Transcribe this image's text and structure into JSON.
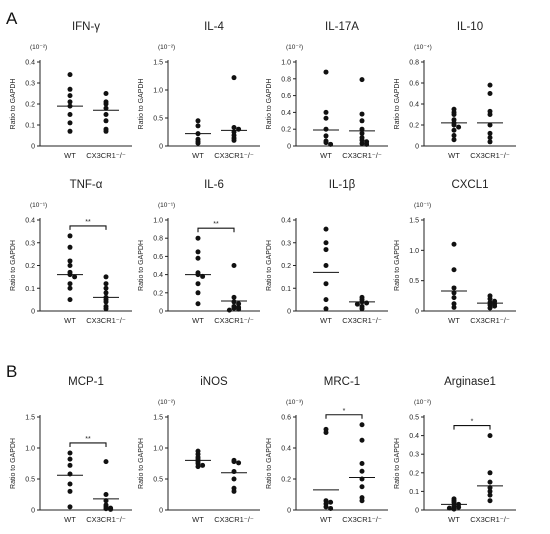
{
  "panels": [
    {
      "letter": "A"
    },
    {
      "letter": "B"
    }
  ],
  "chart_data": [
    {
      "panel": "A",
      "type": "scatter",
      "title": "IFN-γ",
      "unit": "(10⁻²)",
      "ylabel": "Ratio to GAPDH",
      "categories": [
        "WT",
        "CX3CR1⁻/⁻"
      ],
      "ylim": [
        0,
        0.4
      ],
      "yticks": [
        "0",
        "0.1",
        "0.2",
        "0.3",
        "0.4"
      ],
      "series": [
        {
          "values": [
            0.34,
            0.27,
            0.24,
            0.21,
            0.19,
            0.15,
            0.11,
            0.07
          ]
        },
        {
          "values": [
            0.25,
            0.21,
            0.2,
            0.18,
            0.15,
            0.12,
            0.08,
            0.07
          ]
        }
      ],
      "medians": [
        0.19,
        0.17
      ],
      "significance": ""
    },
    {
      "panel": "A",
      "type": "scatter",
      "title": "IL-4",
      "unit": "(10⁻²)",
      "ylabel": "Ratio to GAPDH",
      "categories": [
        "WT",
        "CX3CR1⁻/⁻"
      ],
      "ylim": [
        0,
        1.5
      ],
      "yticks": [
        "0",
        "0.5",
        "1.0",
        "1.5"
      ],
      "series": [
        {
          "values": [
            0.45,
            0.36,
            0.22,
            0.12,
            0.08,
            0.05
          ]
        },
        {
          "values": [
            1.22,
            0.33,
            0.3,
            0.25,
            0.19,
            0.14,
            0.1
          ]
        }
      ],
      "medians": [
        0.22,
        0.28
      ],
      "significance": ""
    },
    {
      "panel": "A",
      "type": "scatter",
      "title": "IL-17A",
      "unit": "(10⁻²)",
      "ylabel": "Ratio to GAPDH",
      "categories": [
        "WT",
        "CX3CR1⁻/⁻"
      ],
      "ylim": [
        0,
        1.0
      ],
      "yticks": [
        "0",
        "0.2",
        "0.4",
        "0.6",
        "0.8",
        "1.0"
      ],
      "series": [
        {
          "values": [
            0.88,
            0.4,
            0.33,
            0.2,
            0.12,
            0.06,
            0.04,
            0.02
          ]
        },
        {
          "values": [
            0.79,
            0.38,
            0.3,
            0.2,
            0.15,
            0.1,
            0.07,
            0.05,
            0.03,
            0.02
          ]
        }
      ],
      "medians": [
        0.19,
        0.18
      ],
      "significance": ""
    },
    {
      "panel": "A",
      "type": "scatter",
      "title": "IL-10",
      "unit": "(10⁻⁴)",
      "ylabel": "Ratio to GAPDH",
      "categories": [
        "WT",
        "CX3CR1⁻/⁻"
      ],
      "ylim": [
        0,
        0.8
      ],
      "yticks": [
        "0",
        "0.2",
        "0.4",
        "0.6",
        "0.8"
      ],
      "series": [
        {
          "values": [
            0.35,
            0.32,
            0.3,
            0.25,
            0.22,
            0.2,
            0.18,
            0.15,
            0.1,
            0.06
          ]
        },
        {
          "values": [
            0.58,
            0.5,
            0.33,
            0.3,
            0.2,
            0.12,
            0.08,
            0.04
          ]
        }
      ],
      "medians": [
        0.22,
        0.22
      ],
      "significance": ""
    },
    {
      "panel": "A",
      "type": "scatter",
      "title": "TNF-α",
      "unit": "(10⁻¹)",
      "ylabel": "Ratio to GAPDH",
      "categories": [
        "WT",
        "CX3CR1⁻/⁻"
      ],
      "ylim": [
        0,
        0.4
      ],
      "yticks": [
        "0",
        "0.1",
        "0.2",
        "0.3",
        "0.4"
      ],
      "series": [
        {
          "values": [
            0.33,
            0.28,
            0.22,
            0.2,
            0.17,
            0.16,
            0.15,
            0.12,
            0.1,
            0.05
          ]
        },
        {
          "values": [
            0.15,
            0.12,
            0.1,
            0.08,
            0.06,
            0.05,
            0.04,
            0.02,
            0.01
          ]
        }
      ],
      "medians": [
        0.16,
        0.06
      ],
      "significance": "**"
    },
    {
      "panel": "A",
      "type": "scatter",
      "title": "IL-6",
      "unit": "(10⁻¹)",
      "ylabel": "Ratio to GAPDH",
      "categories": [
        "WT",
        "CX3CR1⁻/⁻"
      ],
      "ylim": [
        0,
        1.0
      ],
      "yticks": [
        "0",
        "0.2",
        "0.4",
        "0.6",
        "0.8",
        "1.0"
      ],
      "series": [
        {
          "values": [
            0.8,
            0.65,
            0.58,
            0.42,
            0.4,
            0.38,
            0.3,
            0.2,
            0.08
          ]
        },
        {
          "values": [
            0.5,
            0.15,
            0.1,
            0.08,
            0.05,
            0.04,
            0.03,
            0.02,
            0.01
          ]
        }
      ],
      "medians": [
        0.4,
        0.11
      ],
      "significance": "**"
    },
    {
      "panel": "A",
      "type": "scatter",
      "title": "IL-1β",
      "unit": "",
      "ylabel": "Ratio to GAPDH",
      "categories": [
        "WT",
        "CX3CR1⁻/⁻"
      ],
      "ylim": [
        0,
        0.4
      ],
      "yticks": [
        "0",
        "0.1",
        "0.2",
        "0.3",
        "0.4"
      ],
      "series": [
        {
          "values": [
            0.36,
            0.3,
            0.27,
            0.2,
            0.12,
            0.05,
            0.01
          ]
        },
        {
          "values": [
            0.06,
            0.05,
            0.04,
            0.035,
            0.03,
            0.02,
            0.01
          ]
        }
      ],
      "medians": [
        0.17,
        0.04
      ],
      "significance": ""
    },
    {
      "panel": "A",
      "type": "scatter",
      "title": "CXCL1",
      "unit": "(10⁻¹)",
      "ylabel": "Ratio to GAPDH",
      "categories": [
        "WT",
        "CX3CR1⁻/⁻"
      ],
      "ylim": [
        0,
        1.5
      ],
      "yticks": [
        "0",
        "0.5",
        "1.0",
        "1.5"
      ],
      "series": [
        {
          "values": [
            1.1,
            0.68,
            0.38,
            0.3,
            0.22,
            0.12,
            0.06
          ]
        },
        {
          "values": [
            0.25,
            0.2,
            0.16,
            0.14,
            0.12,
            0.1,
            0.08,
            0.05
          ]
        }
      ],
      "medians": [
        0.33,
        0.13
      ],
      "significance": ""
    },
    {
      "panel": "B",
      "type": "scatter",
      "title": "MCP-1",
      "unit": "",
      "ylabel": "Ratio to GAPDH",
      "categories": [
        "WT",
        "CX3CR1⁻/⁻"
      ],
      "ylim": [
        0,
        1.5
      ],
      "yticks": [
        "0",
        "0.5",
        "1.0",
        "1.5"
      ],
      "series": [
        {
          "values": [
            0.92,
            0.82,
            0.72,
            0.58,
            0.42,
            0.3,
            0.05
          ]
        },
        {
          "values": [
            0.78,
            0.25,
            0.15,
            0.08,
            0.05,
            0.03,
            0.02,
            0.01
          ]
        }
      ],
      "medians": [
        0.56,
        0.18
      ],
      "significance": "**"
    },
    {
      "panel": "B",
      "type": "scatter",
      "title": "iNOS",
      "unit": "(10⁻²)",
      "ylabel": "Ratio to GAPDH",
      "categories": [
        "WT",
        "CX3CR1⁻/⁻"
      ],
      "ylim": [
        0,
        1.5
      ],
      "yticks": [
        "0",
        "0.5",
        "1.0",
        "1.5"
      ],
      "series": [
        {
          "values": [
            0.95,
            0.9,
            0.85,
            0.82,
            0.78,
            0.75,
            0.72,
            0.7
          ]
        },
        {
          "values": [
            0.8,
            0.78,
            0.76,
            0.62,
            0.5,
            0.35,
            0.3
          ]
        }
      ],
      "medians": [
        0.8,
        0.6
      ],
      "significance": ""
    },
    {
      "panel": "B",
      "type": "scatter",
      "title": "MRC-1",
      "unit": "(10⁻³)",
      "ylabel": "Ratio to GAPDH",
      "categories": [
        "WT",
        "CX3CR1⁻/⁻"
      ],
      "ylim": [
        0,
        0.6
      ],
      "yticks": [
        "0",
        "0.2",
        "0.4",
        "0.6"
      ],
      "series": [
        {
          "values": [
            0.52,
            0.5,
            0.06,
            0.05,
            0.04,
            0.02,
            0.01
          ]
        },
        {
          "values": [
            0.55,
            0.45,
            0.3,
            0.25,
            0.2,
            0.15,
            0.08,
            0.06
          ]
        }
      ],
      "medians": [
        0.13,
        0.21
      ],
      "significance": "*"
    },
    {
      "panel": "B",
      "type": "scatter",
      "title": "Arginase1",
      "unit": "(10⁻²)",
      "ylabel": "Ratio to GAPDH",
      "categories": [
        "WT",
        "CX3CR1⁻/⁻"
      ],
      "ylim": [
        0,
        0.5
      ],
      "yticks": [
        "0",
        "0.1",
        "0.2",
        "0.3",
        "0.4",
        "0.5"
      ],
      "series": [
        {
          "values": [
            0.06,
            0.05,
            0.04,
            0.03,
            0.02,
            0.015,
            0.01,
            0.005
          ]
        },
        {
          "values": [
            0.4,
            0.2,
            0.15,
            0.12,
            0.1,
            0.08,
            0.05
          ]
        }
      ],
      "medians": [
        0.03,
        0.13
      ],
      "significance": "*"
    }
  ]
}
